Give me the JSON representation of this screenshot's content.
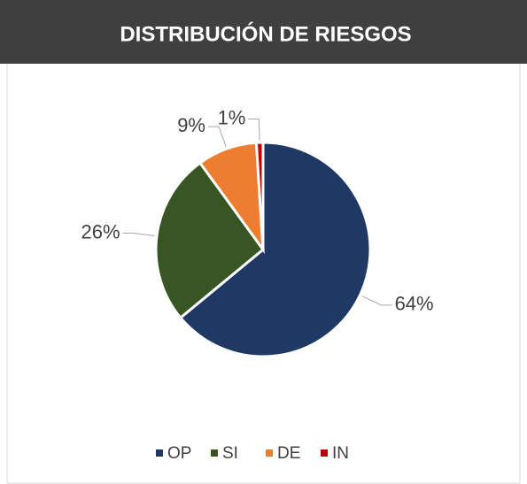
{
  "chart_data": {
    "type": "pie",
    "title": "DISTRIBUCIÓN DE RIESGOS",
    "categories": [
      "OP",
      "SI",
      "DE",
      "IN"
    ],
    "values": [
      64,
      26,
      9,
      1
    ],
    "value_labels": [
      "64%",
      "26%",
      "9%",
      "1%"
    ],
    "colors": [
      "#1f3864",
      "#375623",
      "#ed7d31",
      "#c00000"
    ],
    "legend": "bottom"
  }
}
